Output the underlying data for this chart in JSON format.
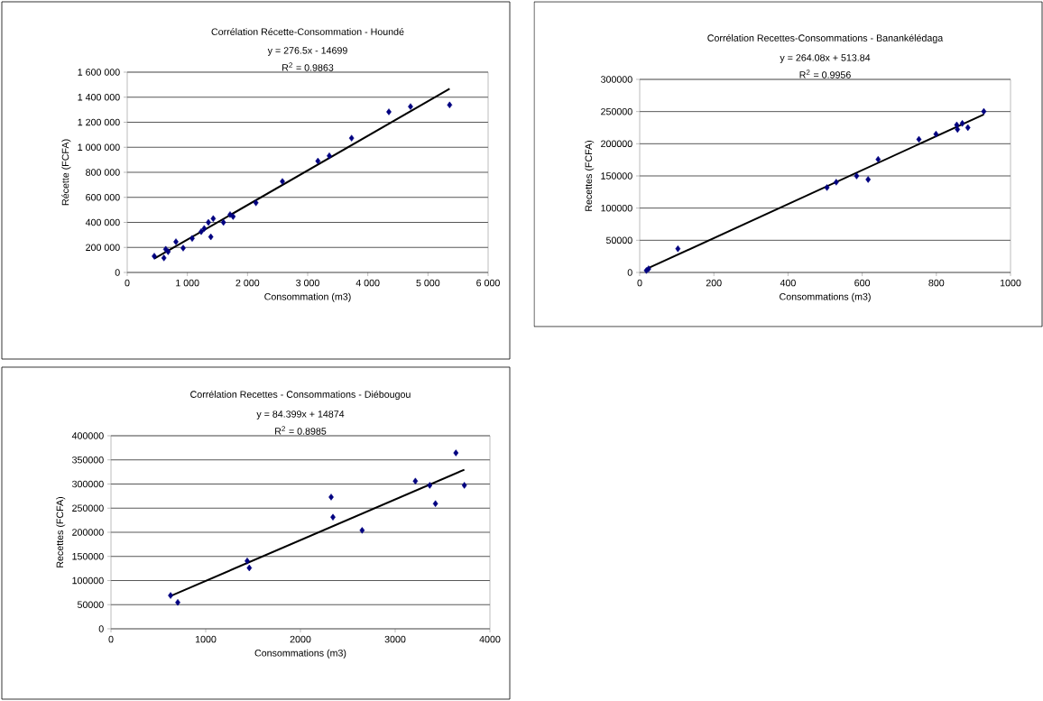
{
  "chart_data": [
    {
      "type": "scatter",
      "title": "Corrélation Récette-Consommation - Houndé",
      "xlabel": "Consommation (m3)",
      "ylabel": "Récette (FCFA)",
      "annotations": [
        "y = 276.5x - 14699",
        "R$^{2}$ = 0.9863"
      ],
      "xlim": [
        0,
        6000
      ],
      "ylim": [
        0,
        1600000
      ],
      "xticks": [
        0,
        {
          "value": 1000,
          "label": "1 000"
        },
        {
          "value": 2000,
          "label": "2 000"
        },
        {
          "value": 3000,
          "label": "3 000"
        },
        {
          "value": 4000,
          "label": "4 000"
        },
        {
          "value": 5000,
          "label": "5 000"
        },
        {
          "value": 6000,
          "label": "6 000"
        }
      ],
      "yticks": [
        0,
        {
          "value": 200000,
          "label": "200 000"
        },
        {
          "value": 400000,
          "label": "400 000"
        },
        {
          "value": 600000,
          "label": "600 000"
        },
        {
          "value": 800000,
          "label": "800 000"
        },
        {
          "value": 1000000,
          "label": "1 000 000"
        },
        {
          "value": 1200000,
          "label": "1 200 000"
        },
        {
          "value": 1400000,
          "label": "1 400 000"
        },
        {
          "value": 1600000,
          "label": "1 600 000"
        }
      ],
      "grid": "y",
      "marker": "diamond",
      "series": [
        {
          "color": "#000080",
          "x": [
            450,
            610,
            640,
            680,
            810,
            930,
            1080,
            1230,
            1280,
            1350,
            1390,
            1430,
            1600,
            1710,
            1760,
            2140,
            2580,
            3170,
            3360,
            3730,
            4350,
            4710,
            5360
          ],
          "values": [
            130000,
            116000,
            185000,
            166000,
            245000,
            195000,
            272000,
            326000,
            351000,
            400000,
            284000,
            430000,
            400000,
            462000,
            447000,
            556000,
            727000,
            890000,
            932000,
            1073000,
            1283000,
            1325000,
            1338000
          ]
        },
        {
          "type": "line",
          "marker": "none",
          "color": "#000000",
          "x": [
            450,
            5360
          ],
          "values": [
            110000,
            1467000
          ]
        }
      ]
    },
    {
      "type": "scatter",
      "title": "Corrélation Recettes-Consommations - Banankélédaga",
      "xlabel": "Consommations (m3)",
      "ylabel": "Recettes (FCFA)",
      "annotations": [
        "y = 264.08x + 513.84",
        "R$^{2}$ = 0.9956"
      ],
      "xlim": [
        0,
        1000
      ],
      "ylim": [
        0,
        300000
      ],
      "xticks": [
        0,
        200,
        400,
        600,
        800,
        1000
      ],
      "yticks": [
        0,
        50000,
        100000,
        150000,
        200000,
        250000,
        300000
      ],
      "grid": "y",
      "marker": "diamond",
      "series": [
        {
          "color": "#000080",
          "x": [
            18,
            24,
            103,
            505,
            530,
            585,
            616,
            643,
            753,
            799,
            855,
            857,
            870,
            885,
            928
          ],
          "values": [
            3000,
            5600,
            36800,
            131900,
            140300,
            150000,
            144500,
            175700,
            206900,
            215000,
            229300,
            222300,
            231600,
            225100,
            250200
          ]
        },
        {
          "type": "line",
          "marker": "none",
          "color": "#000000",
          "x": [
            18,
            928
          ],
          "values": [
            5300,
            245600
          ]
        }
      ]
    },
    {
      "type": "scatter",
      "title": "Corrélation Recettes - Consommations - Diébougou",
      "xlabel": "Consommations (m3)",
      "ylabel": "Recettes (FCFA)",
      "annotations": [
        "y = 84.399x + 14874",
        "R$^{2}$ = 0.8985"
      ],
      "xlim": [
        0,
        4000
      ],
      "ylim": [
        0,
        400000
      ],
      "xticks": [
        0,
        1000,
        2000,
        3000,
        4000
      ],
      "yticks": [
        0,
        50000,
        100000,
        150000,
        200000,
        250000,
        300000,
        350000,
        400000
      ],
      "grid": "y",
      "marker": "diamond",
      "series": [
        {
          "color": "#000080",
          "x": [
            629,
            705,
            1438,
            1460,
            2324,
            2343,
            2651,
            3213,
            3365,
            3425,
            3641,
            3730
          ],
          "values": [
            69000,
            54700,
            140500,
            126200,
            273000,
            231300,
            204000,
            306000,
            297300,
            259300,
            364400,
            297300
          ]
        },
        {
          "type": "line",
          "marker": "none",
          "color": "#000000",
          "x": [
            629,
            3730
          ],
          "values": [
            68000,
            329700
          ]
        }
      ]
    }
  ]
}
